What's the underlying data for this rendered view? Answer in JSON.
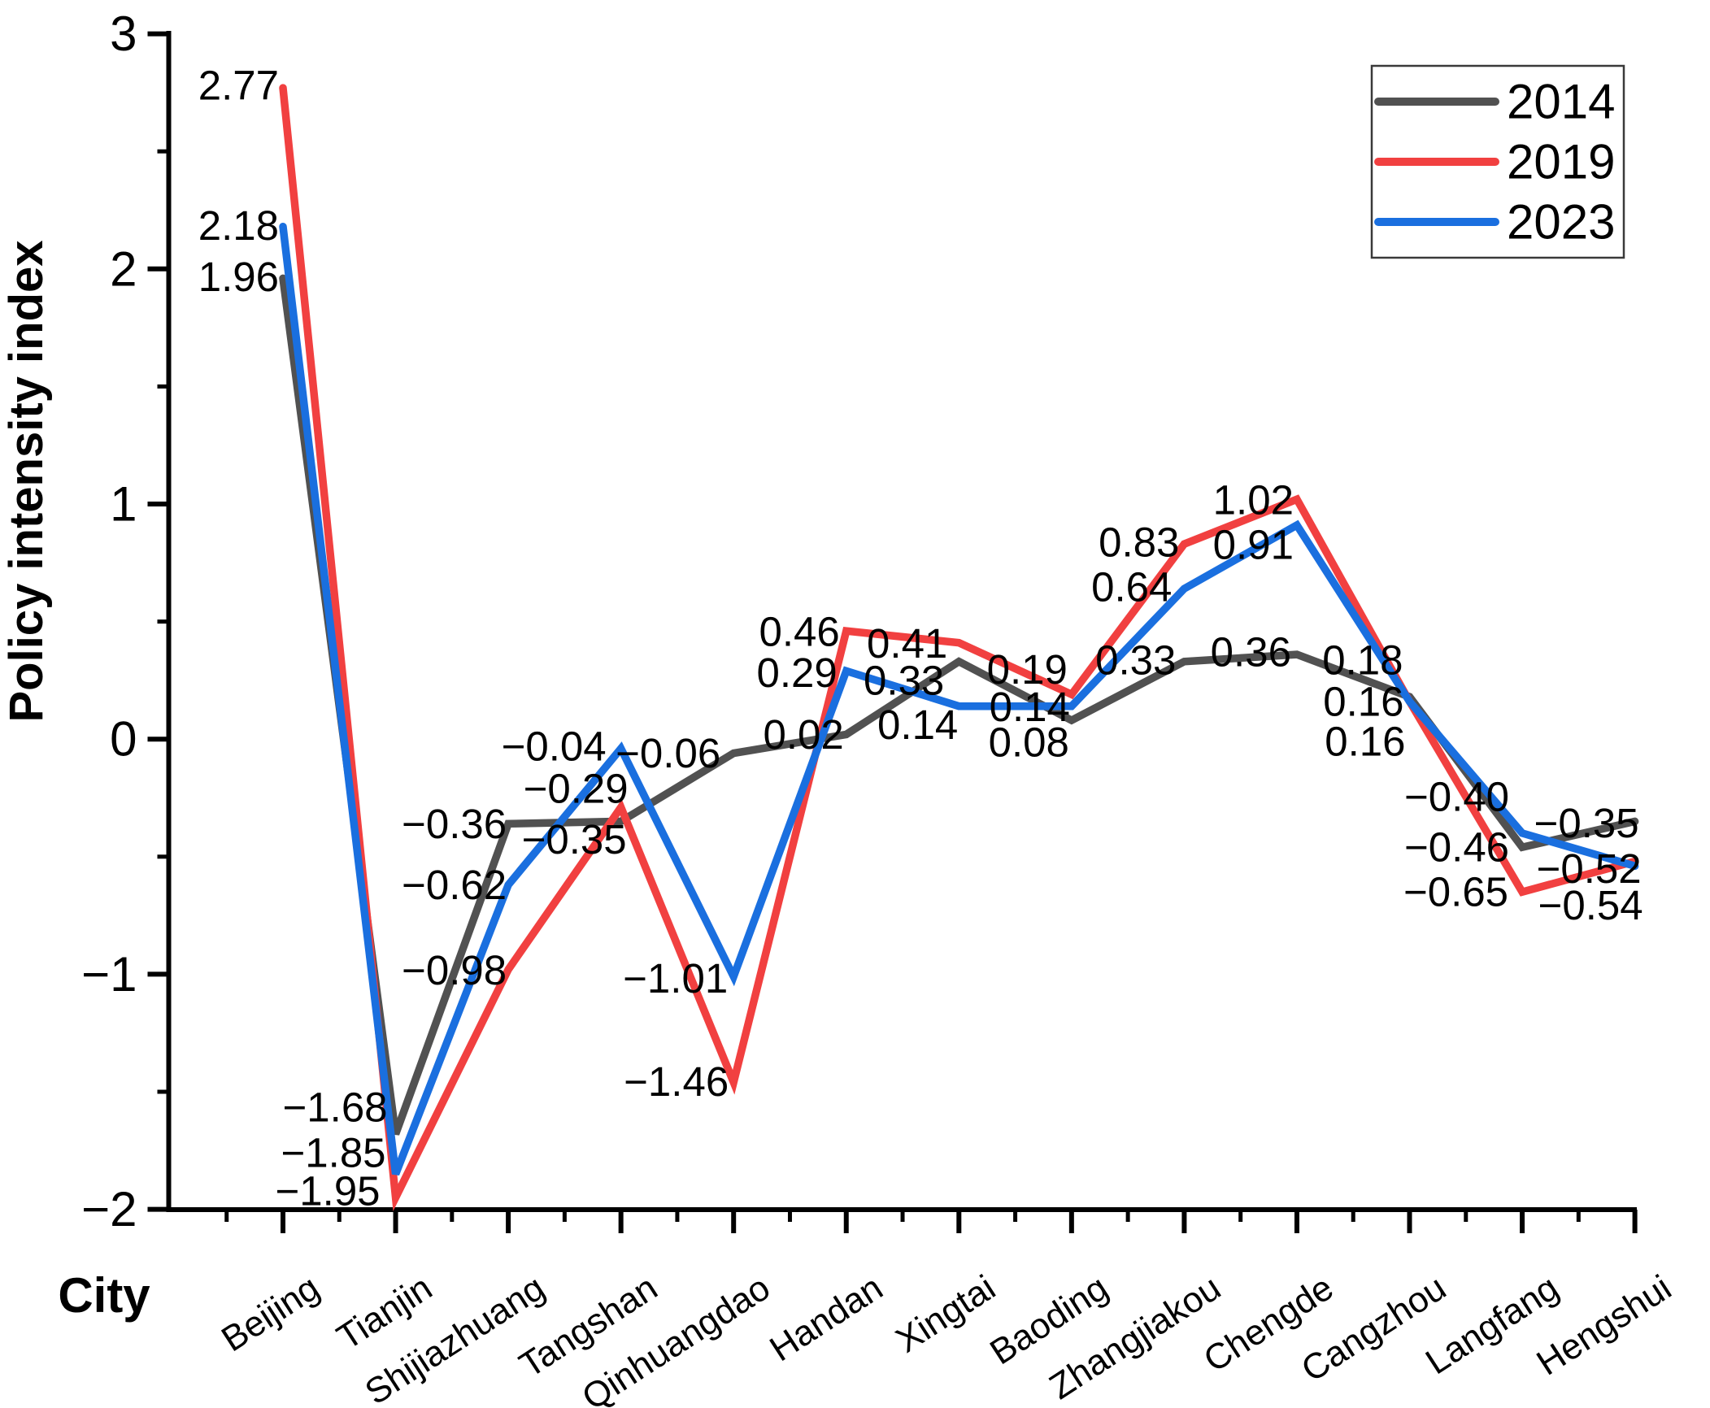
{
  "figure": {
    "y_axis_title": "Policy intensity index",
    "x_axis_title": "City"
  },
  "chart_data": {
    "type": "line",
    "title": "",
    "xlabel": "City",
    "ylabel": "Policy intensity index",
    "categories": [
      "Beijing",
      "Tianjin",
      "Shijiazhuang",
      "Tangshan",
      "Qinhuangdao",
      "Handan",
      "Xingtai",
      "Baoding",
      "Zhangjiakou",
      "Chengde",
      "Cangzhou",
      "Langfang",
      "Hengshui"
    ],
    "series": [
      {
        "name": "2014",
        "color": "#515151",
        "values": [
          1.96,
          -1.68,
          -0.36,
          -0.35,
          -0.06,
          0.02,
          0.33,
          0.08,
          0.33,
          0.36,
          0.18,
          -0.46,
          -0.35
        ],
        "labels": [
          "1.96",
          "−1.68",
          "−0.36",
          "−0.35",
          "−0.06",
          "0.02",
          "0.33",
          "0.08",
          "0.33",
          "0.36",
          "0.18",
          "−0.46",
          "−0.35"
        ]
      },
      {
        "name": "2019",
        "color": "#F14040",
        "values": [
          2.77,
          -1.95,
          -0.98,
          -0.29,
          -1.46,
          0.46,
          0.41,
          0.19,
          0.83,
          1.02,
          0.16,
          -0.65,
          -0.52
        ],
        "labels": [
          "2.77",
          "−1.95",
          "−0.98",
          "−0.29",
          "−1.46",
          "0.46",
          "0.41",
          "0.19",
          "0.83",
          "1.02",
          "0.16",
          "−0.65",
          "−0.52"
        ]
      },
      {
        "name": "2023",
        "color": "#1A6FDF",
        "values": [
          2.18,
          -1.85,
          -0.62,
          -0.04,
          -1.01,
          0.29,
          0.14,
          0.14,
          0.64,
          0.91,
          0.16,
          -0.4,
          -0.54
        ],
        "labels": [
          "2.18",
          "−1.85",
          "−0.62",
          "−0.04",
          "−1.01",
          "0.29",
          "0.14",
          "0.14",
          "0.64",
          "0.91",
          "0.16",
          "−0.40",
          "−0.54"
        ]
      }
    ],
    "ylim": [
      -2,
      3
    ],
    "y_ticks": [
      3,
      2,
      1,
      0,
      -1,
      -2
    ],
    "y_tick_labels": [
      "3",
      "2",
      "1",
      "0",
      "−1",
      "−2"
    ],
    "grid": false,
    "legend_position": "top-right",
    "legend_entries": [
      "2014",
      "2019",
      "2023"
    ]
  }
}
